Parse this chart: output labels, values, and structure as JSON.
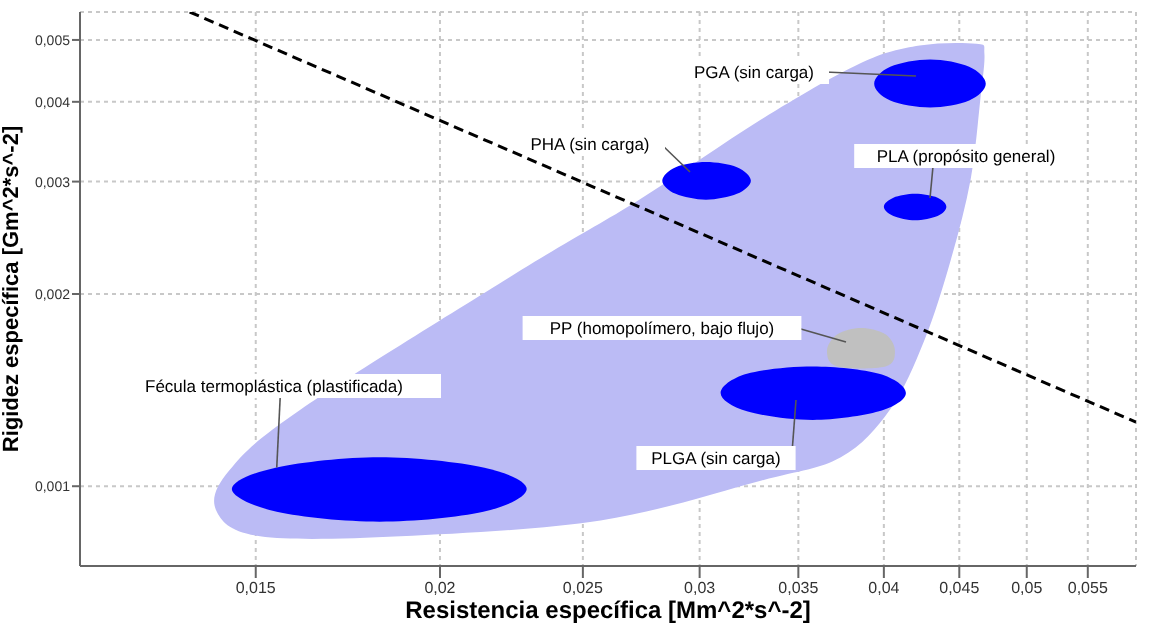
{
  "chart_data": {
    "type": "area",
    "xlabel": "Resistencia específica [Mm^2*s^-2]",
    "ylabel": "Rigidez específica [Gm^2*s^-2]",
    "log": "xy",
    "grid": true,
    "xlim": [
      0.0114,
      0.0593
    ],
    "ylim": [
      0.00075,
      0.00553
    ],
    "xticks": [
      {
        "value": 0.015,
        "label": "0,015"
      },
      {
        "value": 0.02,
        "label": "0,02"
      },
      {
        "value": 0.025,
        "label": "0,025"
      },
      {
        "value": 0.03,
        "label": "0,03"
      },
      {
        "value": 0.035,
        "label": "0,035"
      },
      {
        "value": 0.04,
        "label": "0,04"
      },
      {
        "value": 0.045,
        "label": "0,045"
      },
      {
        "value": 0.05,
        "label": "0,05"
      },
      {
        "value": 0.055,
        "label": "0,055"
      }
    ],
    "yticks": [
      {
        "value": 0.001,
        "label": "0,001"
      },
      {
        "value": 0.002,
        "label": "0,002"
      },
      {
        "value": 0.003,
        "label": "0,003"
      },
      {
        "value": 0.004,
        "label": "0,004"
      },
      {
        "value": 0.005,
        "label": "0,005"
      }
    ],
    "annotations": [
      "PGA (sin carga)",
      "PHA (sin carga)",
      "PLA (propósito general)",
      "PP (homopolímero, bajo flujo)",
      "PLGA (sin carga)",
      {
        "text": "Fécula termoplástica (plastificada)",
        "x": 0.0155,
        "y": 0.00107
      }
    ],
    "series": [
      {
        "color": "#bbbbf5",
        "x": [
          0.0141,
          0.0151,
          0.0188,
          0.0257,
          0.033,
          0.0374,
          0.0404,
          0.0426,
          0.0444,
          0.0458,
          0.0465,
          0.0468,
          0.0462,
          0.0423,
          0.0385,
          0.033,
          0.0273,
          0.0227,
          0.0161,
          0.0144
        ],
        "values": [
          0.000917,
          0.000835,
          0.000835,
          0.000884,
          0.00102,
          0.00111,
          0.00132,
          0.00169,
          0.00226,
          0.00302,
          0.00403,
          0.00476,
          0.00493,
          0.0049,
          0.00459,
          0.00375,
          0.00281,
          0.00218,
          0.00132,
          0.00106
        ]
      },
      {
        "type": "line",
        "line_style": "dashed",
        "color": "#000000",
        "x": [
          0.01353,
          0.0593
        ],
        "values": [
          0.00553,
          0.00126
        ]
      },
      {
        "color": "#0000ff",
        "x": [
          0.0469,
          0.0457,
          0.043,
          0.0404,
          0.0394,
          0.0404,
          0.043,
          0.0457
        ],
        "values": [
          0.00427,
          0.00454,
          0.00466,
          0.00454,
          0.00427,
          0.00402,
          0.00392,
          0.00402
        ]
      },
      {
        "color": "#0000ff",
        "x": [
          0.0325,
          0.0318,
          0.0303,
          0.0289,
          0.0283,
          0.0289,
          0.0303,
          0.0318
        ],
        "values": [
          0.00301,
          0.00316,
          0.00322,
          0.00316,
          0.00301,
          0.00287,
          0.00281,
          0.00287
        ]
      },
      {
        "color": "#0000ff",
        "x": [
          0.0441,
          0.0435,
          0.042,
          0.0406,
          0.04,
          0.0406,
          0.042,
          0.0435
        ],
        "values": [
          0.00274,
          0.00283,
          0.00287,
          0.00283,
          0.00274,
          0.00265,
          0.00261,
          0.00265
        ]
      },
      {
        "color": "#c0c0c0",
        "x": [
          0.0407,
          0.0401,
          0.0386,
          0.0372,
          0.0366,
          0.0372,
          0.0386,
          0.0401
        ],
        "values": [
          0.00163,
          0.00173,
          0.00177,
          0.00173,
          0.00163,
          0.00154,
          null,
          0.00154
        ]
      },
      {
        "color": "#0000ff",
        "x": [
          0.0414,
          0.0397,
          0.0358,
          0.0323,
          0.031,
          0.0323,
          0.0358,
          0.0397
        ],
        "values": [
          0.0014,
          0.0015,
          0.00154,
          0.0015,
          0.0014,
          0.00131,
          0.00127,
          0.00131
        ]
      },
      {
        "color": "#0000ff",
        "x": [
          0.0229,
          0.0214,
          0.0182,
          0.0155,
          0.01445,
          0.0155,
          0.0182,
          0.0214
        ],
        "values": [
          0.00099,
          0.00107,
          0.00111,
          0.00107,
          0.00099,
          0.000912,
          0.00088,
          0.000912
        ]
      }
    ]
  }
}
